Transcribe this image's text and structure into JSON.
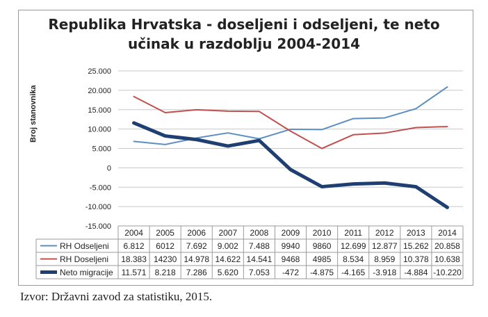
{
  "chart_data": {
    "type": "line",
    "title_line1": "Republika Hrvatska - doseljeni i odseljeni, te neto",
    "title_line2": "učinak u razdoblju 2004-2014",
    "ylabel": "Broj stanovnika",
    "ylim": [
      -15000,
      25000
    ],
    "yticks": [
      "25.000",
      "20.000",
      "15.000",
      "10.000",
      "5.000",
      "0",
      "-5.000",
      "-10.000",
      "-15.000"
    ],
    "ytick_values": [
      25000,
      20000,
      15000,
      10000,
      5000,
      0,
      -5000,
      -10000,
      -15000
    ],
    "categories": [
      "2004",
      "2005",
      "2006",
      "2007",
      "2008",
      "2009",
      "2010",
      "2011",
      "2012",
      "2013",
      "2014"
    ],
    "series": [
      {
        "name": "RH Odseljeni",
        "color": "#5b8ec2",
        "width": 2,
        "values": [
          6812,
          6012,
          7692,
          9002,
          7488,
          9940,
          9860,
          12699,
          12877,
          15262,
          20858
        ],
        "labels": [
          "6.812",
          "6012",
          "7.692",
          "9.002",
          "7.488",
          "9940",
          "9860",
          "12.699",
          "12.877",
          "15.262",
          "20.858"
        ]
      },
      {
        "name": "RH Doseljeni",
        "color": "#c0504d",
        "width": 2,
        "values": [
          18383,
          14230,
          14978,
          14622,
          14541,
          9468,
          4985,
          8534,
          8959,
          10378,
          10638
        ],
        "labels": [
          "18.383",
          "14230",
          "14.978",
          "14.622",
          "14.541",
          "9468",
          "4985",
          "8.534",
          "8.959",
          "10.378",
          "10.638"
        ]
      },
      {
        "name": "Neto migracije",
        "color": "#1f3f73",
        "width": 5,
        "values": [
          11571,
          8218,
          7286,
          5620,
          7053,
          -472,
          -4875,
          -4165,
          -3918,
          -4884,
          -10220
        ],
        "labels": [
          "11.571",
          "8.218",
          "7.286",
          "5.620",
          "7.053",
          "-472",
          "-4.875",
          "-4.165",
          "-3.918",
          "-4.884",
          "-10.220"
        ]
      }
    ],
    "grid": true
  },
  "source_text": "Izvor: Državni zavod za statistiku, 2015."
}
